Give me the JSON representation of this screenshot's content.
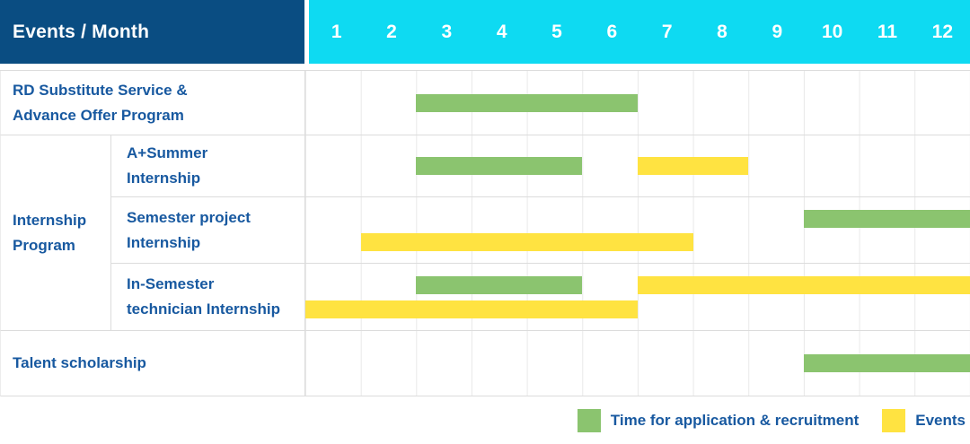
{
  "header": {
    "title": "Events / Month",
    "months": [
      "1",
      "2",
      "3",
      "4",
      "5",
      "6",
      "7",
      "8",
      "9",
      "10",
      "11",
      "12"
    ]
  },
  "colors": {
    "header_bg": "#0A4D82",
    "month_header_bg": "#0EDAF2",
    "application_green": "#8BC46F",
    "events_yellow": "#FFE341",
    "label_text_blue": "#1859A0",
    "grid_line": "#E9E9E9"
  },
  "chart_data": {
    "type": "gantt",
    "x_axis": {
      "label": "Month",
      "range": [
        1,
        12
      ]
    },
    "group_label": {
      "text": "Internship Program",
      "lines": [
        "Internship",
        "Program"
      ]
    },
    "legend": [
      {
        "name": "application",
        "label": "Time for application & recruitment",
        "color": "#8BC46F"
      },
      {
        "name": "events",
        "label": "Events",
        "color": "#FFE341"
      }
    ],
    "rows": [
      {
        "label": "RD Substitute Service & Advance Offer Program",
        "label_lines": [
          "RD Substitute Service &",
          "Advance Offer Program"
        ],
        "group": "",
        "bars": [
          {
            "series": "application",
            "color": "green",
            "start_month": 3,
            "end_month": 6,
            "lane": "center"
          }
        ]
      },
      {
        "label": "A+Summer Internship",
        "label_lines": [
          "A+Summer",
          "Internship"
        ],
        "group": "Internship Program",
        "bars": [
          {
            "series": "application",
            "color": "green",
            "start_month": 3,
            "end_month": 5,
            "lane": "center"
          },
          {
            "series": "events",
            "color": "yellow",
            "start_month": 7,
            "end_month": 8,
            "lane": "center"
          }
        ]
      },
      {
        "label": "Semester project Internship",
        "label_lines": [
          "Semester project",
          "Internship"
        ],
        "group": "Internship Program",
        "bars": [
          {
            "series": "application",
            "color": "green",
            "start_month": 10,
            "end_month": 12,
            "lane": "top"
          },
          {
            "series": "events",
            "color": "yellow",
            "start_month": 2,
            "end_month": 7,
            "lane": "bottom"
          }
        ]
      },
      {
        "label": "In-Semester technician Internship",
        "label_lines": [
          "In-Semester",
          "technician Internship"
        ],
        "group": "Internship Program",
        "bars": [
          {
            "series": "application",
            "color": "green",
            "start_month": 3,
            "end_month": 5,
            "lane": "top"
          },
          {
            "series": "events",
            "color": "yellow",
            "start_month": 7,
            "end_month": 12,
            "lane": "top"
          },
          {
            "series": "events",
            "color": "yellow",
            "start_month": 1,
            "end_month": 6,
            "lane": "bottom"
          }
        ]
      },
      {
        "label": "Talent scholarship",
        "label_lines": [
          "Talent scholarship"
        ],
        "group": "",
        "bars": [
          {
            "series": "application",
            "color": "green",
            "start_month": 10,
            "end_month": 12,
            "lane": "center"
          }
        ]
      }
    ]
  }
}
